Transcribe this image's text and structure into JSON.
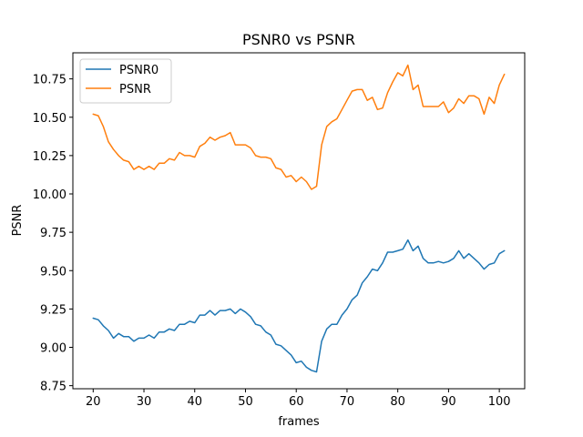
{
  "chart_data": {
    "type": "line",
    "title": "PSNR0 vs PSNR",
    "xlabel": "frames",
    "ylabel": "PSNR",
    "xlim": [
      16,
      105
    ],
    "ylim": [
      8.73,
      10.92
    ],
    "xticks": [
      20,
      30,
      40,
      50,
      60,
      70,
      80,
      90,
      100
    ],
    "yticks": [
      8.75,
      9.0,
      9.25,
      9.5,
      9.75,
      10.0,
      10.25,
      10.5,
      10.75
    ],
    "ytick_labels": [
      "8.75",
      "9.00",
      "9.25",
      "9.50",
      "9.75",
      "10.00",
      "10.25",
      "10.50",
      "10.75"
    ],
    "grid": false,
    "legend_position": "top-left",
    "x": [
      20,
      21,
      22,
      23,
      24,
      25,
      26,
      27,
      28,
      29,
      30,
      31,
      32,
      33,
      34,
      35,
      36,
      37,
      38,
      39,
      40,
      41,
      42,
      43,
      44,
      45,
      46,
      47,
      48,
      49,
      50,
      51,
      52,
      53,
      54,
      55,
      56,
      57,
      58,
      59,
      60,
      61,
      62,
      63,
      64,
      65,
      66,
      67,
      68,
      69,
      70,
      71,
      72,
      73,
      74,
      75,
      76,
      77,
      78,
      79,
      80,
      81,
      82,
      83,
      84,
      85,
      86,
      87,
      88,
      89,
      90,
      91,
      92,
      93,
      94,
      95,
      96,
      97,
      98,
      99,
      100,
      101
    ],
    "series": [
      {
        "name": "PSNR0",
        "color": "#1f77b4",
        "values": [
          9.19,
          9.18,
          9.14,
          9.11,
          9.06,
          9.09,
          9.07,
          9.07,
          9.04,
          9.06,
          9.06,
          9.08,
          9.06,
          9.1,
          9.1,
          9.12,
          9.11,
          9.15,
          9.15,
          9.17,
          9.16,
          9.21,
          9.21,
          9.24,
          9.21,
          9.24,
          9.24,
          9.25,
          9.22,
          9.25,
          9.23,
          9.2,
          9.15,
          9.14,
          9.1,
          9.08,
          9.02,
          9.01,
          8.98,
          8.95,
          8.9,
          8.91,
          8.87,
          8.85,
          8.84,
          9.04,
          9.12,
          9.15,
          9.15,
          9.21,
          9.25,
          9.31,
          9.34,
          9.42,
          9.46,
          9.51,
          9.5,
          9.55,
          9.62,
          9.62,
          9.63,
          9.64,
          9.7,
          9.63,
          9.66,
          9.58,
          9.55,
          9.55,
          9.56,
          9.55,
          9.56,
          9.58,
          9.63,
          9.58,
          9.61,
          9.58,
          9.55,
          9.51,
          9.54,
          9.55,
          9.61,
          9.63
        ]
      },
      {
        "name": "PSNR",
        "color": "#ff7f0e",
        "values": [
          10.52,
          10.51,
          10.44,
          10.34,
          10.29,
          10.25,
          10.22,
          10.21,
          10.16,
          10.18,
          10.16,
          10.18,
          10.16,
          10.2,
          10.2,
          10.23,
          10.22,
          10.27,
          10.25,
          10.25,
          10.24,
          10.31,
          10.33,
          10.37,
          10.35,
          10.37,
          10.38,
          10.4,
          10.32,
          10.32,
          10.32,
          10.3,
          10.25,
          10.24,
          10.24,
          10.23,
          10.17,
          10.16,
          10.11,
          10.12,
          10.08,
          10.11,
          10.08,
          10.03,
          10.05,
          10.32,
          10.44,
          10.47,
          10.49,
          10.55,
          10.61,
          10.67,
          10.68,
          10.68,
          10.61,
          10.63,
          10.55,
          10.56,
          10.66,
          10.73,
          10.79,
          10.77,
          10.84,
          10.68,
          10.71,
          10.57,
          10.57,
          10.57,
          10.57,
          10.6,
          10.53,
          10.56,
          10.62,
          10.59,
          10.64,
          10.64,
          10.62,
          10.52,
          10.63,
          10.59,
          10.71,
          10.78
        ]
      }
    ]
  }
}
